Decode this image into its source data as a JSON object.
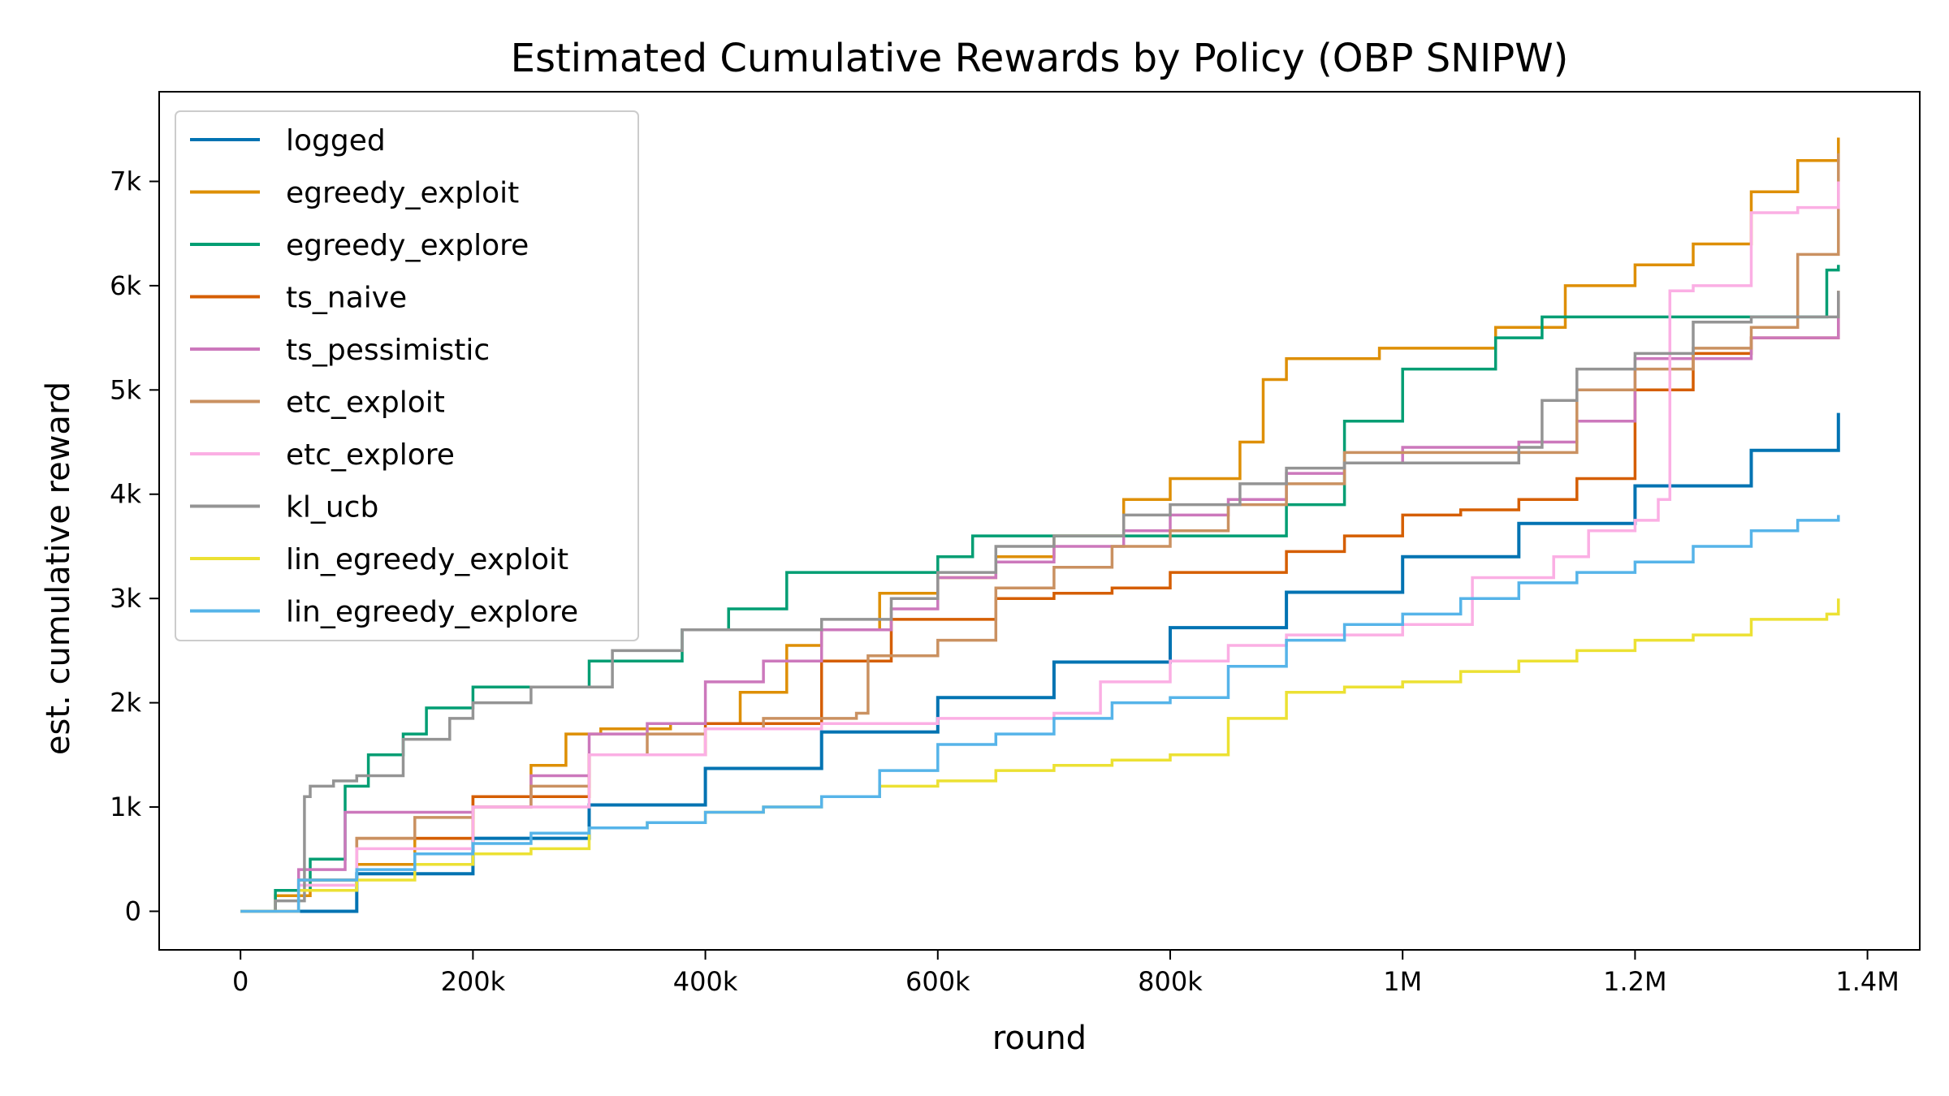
{
  "chart_data": {
    "type": "line",
    "title": "Estimated Cumulative Rewards by Policy (OBP SNIPW)",
    "xlabel": "round",
    "ylabel": "est. cumulative reward",
    "xlim": [
      -70000,
      1445000
    ],
    "ylim": [
      -370,
      7860
    ],
    "xticks": [
      {
        "value": 0,
        "label": "0"
      },
      {
        "value": 200000,
        "label": "200k"
      },
      {
        "value": 400000,
        "label": "400k"
      },
      {
        "value": 600000,
        "label": "600k"
      },
      {
        "value": 800000,
        "label": "800k"
      },
      {
        "value": 1000000,
        "label": "1M"
      },
      {
        "value": 1200000,
        "label": "1.2M"
      },
      {
        "value": 1400000,
        "label": "1.4M"
      }
    ],
    "yticks": [
      {
        "value": 0,
        "label": "0"
      },
      {
        "value": 1000,
        "label": "1k"
      },
      {
        "value": 2000,
        "label": "2k"
      },
      {
        "value": 3000,
        "label": "3k"
      },
      {
        "value": 4000,
        "label": "4k"
      },
      {
        "value": 5000,
        "label": "5k"
      },
      {
        "value": 6000,
        "label": "6k"
      },
      {
        "value": 7000,
        "label": "7k"
      }
    ],
    "grid": false,
    "legend_position": "top-left",
    "step": true,
    "series": [
      {
        "name": "logged",
        "color": "#0173b2",
        "x": [
          0,
          100000,
          200000,
          300000,
          400000,
          500000,
          600000,
          700000,
          800000,
          900000,
          1000000,
          1100000,
          1200000,
          1300000,
          1375000
        ],
        "y": [
          0,
          360,
          700,
          1020,
          1370,
          1720,
          2050,
          2390,
          2720,
          3060,
          3400,
          3720,
          4080,
          4420,
          4780
        ]
      },
      {
        "name": "egreedy_exploit",
        "color": "#de8f05",
        "x": [
          0,
          30000,
          60000,
          100000,
          150000,
          200000,
          250000,
          280000,
          310000,
          370000,
          430000,
          470000,
          500000,
          550000,
          600000,
          650000,
          700000,
          760000,
          800000,
          860000,
          880000,
          900000,
          980000,
          1020000,
          1080000,
          1140000,
          1200000,
          1250000,
          1300000,
          1340000,
          1375000
        ],
        "y": [
          0,
          150,
          300,
          450,
          700,
          1100,
          1400,
          1700,
          1750,
          1800,
          2100,
          2550,
          2700,
          3050,
          3200,
          3400,
          3600,
          3950,
          4150,
          4500,
          5100,
          5300,
          5400,
          5400,
          5600,
          6000,
          6200,
          6400,
          6900,
          7200,
          7420
        ]
      },
      {
        "name": "egreedy_explore",
        "color": "#029e73",
        "x": [
          0,
          30000,
          60000,
          90000,
          110000,
          140000,
          160000,
          200000,
          300000,
          380000,
          420000,
          470000,
          600000,
          630000,
          900000,
          950000,
          1000000,
          1080000,
          1120000,
          1200000,
          1365000,
          1375000
        ],
        "y": [
          0,
          200,
          500,
          1200,
          1500,
          1700,
          1950,
          2150,
          2400,
          2700,
          2900,
          3250,
          3400,
          3600,
          3900,
          4700,
          5200,
          5500,
          5700,
          5700,
          6150,
          6200
        ]
      },
      {
        "name": "ts_naive",
        "color": "#d55e00",
        "x": [
          0,
          50000,
          100000,
          200000,
          300000,
          400000,
          500000,
          560000,
          650000,
          700000,
          750000,
          800000,
          900000,
          950000,
          1000000,
          1050000,
          1100000,
          1150000,
          1200000,
          1250000,
          1300000,
          1375000
        ],
        "y": [
          0,
          300,
          700,
          1100,
          1500,
          1800,
          2400,
          2800,
          3000,
          3050,
          3100,
          3250,
          3450,
          3600,
          3800,
          3850,
          3950,
          4150,
          5000,
          5350,
          5500,
          5950
        ]
      },
      {
        "name": "ts_pessimistic",
        "color": "#cc78bc",
        "x": [
          0,
          50000,
          90000,
          150000,
          200000,
          250000,
          300000,
          350000,
          400000,
          450000,
          500000,
          560000,
          600000,
          650000,
          700000,
          760000,
          800000,
          850000,
          900000,
          950000,
          1000000,
          1050000,
          1100000,
          1150000,
          1200000,
          1250000,
          1300000,
          1375000
        ],
        "y": [
          0,
          400,
          950,
          950,
          1000,
          1300,
          1700,
          1800,
          2200,
          2400,
          2700,
          2900,
          3200,
          3350,
          3500,
          3650,
          3800,
          3950,
          4200,
          4300,
          4450,
          4450,
          4500,
          4700,
          5300,
          5300,
          5500,
          5920
        ]
      },
      {
        "name": "etc_exploit",
        "color": "#ca9161",
        "x": [
          0,
          50000,
          100000,
          150000,
          200000,
          250000,
          300000,
          350000,
          400000,
          450000,
          500000,
          530000,
          540000,
          600000,
          650000,
          700000,
          750000,
          800000,
          850000,
          900000,
          950000,
          1000000,
          1100000,
          1150000,
          1200000,
          1250000,
          1300000,
          1340000,
          1375000
        ],
        "y": [
          0,
          300,
          700,
          900,
          1000,
          1200,
          1500,
          1700,
          1750,
          1850,
          1850,
          1900,
          2450,
          2600,
          3100,
          3300,
          3500,
          3650,
          3900,
          4100,
          4400,
          4400,
          4400,
          5000,
          5200,
          5400,
          5600,
          6300,
          7270
        ]
      },
      {
        "name": "etc_explore",
        "color": "#fbafe4",
        "x": [
          0,
          50000,
          100000,
          200000,
          300000,
          400000,
          500000,
          600000,
          700000,
          740000,
          800000,
          850000,
          900000,
          1000000,
          1060000,
          1130000,
          1160000,
          1200000,
          1220000,
          1230000,
          1250000,
          1300000,
          1340000,
          1375000
        ],
        "y": [
          0,
          250,
          600,
          1000,
          1500,
          1750,
          1800,
          1850,
          1900,
          2200,
          2400,
          2550,
          2650,
          2750,
          3200,
          3400,
          3650,
          3750,
          3950,
          5950,
          6000,
          6700,
          6750,
          7000
        ]
      },
      {
        "name": "kl_ucb",
        "color": "#949494",
        "x": [
          0,
          30000,
          55000,
          60000,
          80000,
          100000,
          140000,
          180000,
          200000,
          250000,
          320000,
          380000,
          450000,
          500000,
          560000,
          600000,
          650000,
          700000,
          760000,
          800000,
          860000,
          900000,
          950000,
          1000000,
          1100000,
          1120000,
          1150000,
          1200000,
          1250000,
          1300000,
          1375000
        ],
        "y": [
          0,
          100,
          1100,
          1200,
          1250,
          1300,
          1650,
          1850,
          2000,
          2150,
          2500,
          2700,
          2700,
          2800,
          3000,
          3250,
          3500,
          3600,
          3800,
          3900,
          4100,
          4250,
          4300,
          4300,
          4450,
          4900,
          5200,
          5350,
          5650,
          5700,
          5950
        ]
      },
      {
        "name": "lin_egreedy_exploit",
        "color": "#ece133",
        "x": [
          0,
          50000,
          100000,
          150000,
          200000,
          250000,
          300000,
          350000,
          400000,
          450000,
          500000,
          550000,
          600000,
          650000,
          700000,
          750000,
          800000,
          850000,
          900000,
          950000,
          1000000,
          1050000,
          1100000,
          1150000,
          1200000,
          1250000,
          1300000,
          1365000,
          1375000
        ],
        "y": [
          0,
          200,
          300,
          450,
          550,
          600,
          800,
          850,
          950,
          1000,
          1100,
          1200,
          1250,
          1350,
          1400,
          1450,
          1500,
          1850,
          2100,
          2150,
          2200,
          2300,
          2400,
          2500,
          2600,
          2650,
          2800,
          2850,
          3000
        ]
      },
      {
        "name": "lin_egreedy_explore",
        "color": "#56b4e9",
        "x": [
          0,
          50000,
          100000,
          150000,
          200000,
          250000,
          300000,
          350000,
          400000,
          450000,
          500000,
          550000,
          600000,
          650000,
          700000,
          750000,
          800000,
          850000,
          900000,
          950000,
          1000000,
          1050000,
          1100000,
          1150000,
          1200000,
          1250000,
          1300000,
          1340000,
          1375000
        ],
        "y": [
          0,
          300,
          400,
          550,
          650,
          750,
          800,
          850,
          950,
          1000,
          1100,
          1350,
          1600,
          1700,
          1850,
          2000,
          2050,
          2350,
          2600,
          2750,
          2850,
          3000,
          3150,
          3250,
          3350,
          3500,
          3650,
          3750,
          3800
        ]
      }
    ]
  }
}
